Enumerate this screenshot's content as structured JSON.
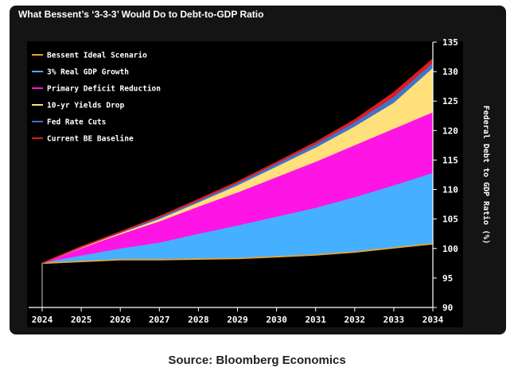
{
  "card": {
    "title": "What Bessent’s ‘3-3-3’ Would Do to Debt-to-GDP Ratio"
  },
  "source": {
    "text": "Source: Bloomberg Economics"
  },
  "chart_data": {
    "type": "area",
    "title": "What Bessent’s ‘3-3-3’ Would Do to Debt-to-GDP Ratio",
    "xlabel": "",
    "ylabel": "Federal Debt to GDP Ratio (%)",
    "x": [
      2024,
      2025,
      2026,
      2027,
      2028,
      2029,
      2030,
      2031,
      2032,
      2033,
      2034
    ],
    "ylim": [
      90,
      135
    ],
    "yticks": [
      90,
      95,
      100,
      105,
      110,
      115,
      120,
      125,
      130,
      135
    ],
    "legend_position": "top-left",
    "series": [
      {
        "name": "Bessent Ideal Scenario",
        "color": "#e8a33a",
        "values": [
          97.5,
          97.8,
          98.1,
          98.1,
          98.2,
          98.3,
          98.6,
          98.9,
          99.4,
          100.1,
          100.8
        ]
      },
      {
        "name": "3% Real GDP Growth",
        "color": "#45b0ff",
        "values": [
          97.5,
          98.7,
          99.9,
          100.9,
          102.4,
          103.8,
          105.3,
          106.8,
          108.6,
          110.6,
          112.7
        ]
      },
      {
        "name": "Primary Deficit Reduction",
        "color": "#ff14e6",
        "values": [
          97.5,
          100.0,
          102.3,
          104.5,
          107.0,
          109.4,
          112.0,
          114.6,
          117.4,
          120.2,
          123.0
        ]
      },
      {
        "name": "10-yr Yields Drop",
        "color": "#ffe07a",
        "values": [
          97.5,
          100.1,
          102.5,
          104.9,
          107.7,
          110.6,
          113.8,
          117.0,
          120.6,
          124.6,
          130.5
        ]
      },
      {
        "name": "Fed Rate Cuts",
        "color": "#3f74c8",
        "values": [
          97.5,
          100.2,
          102.7,
          105.2,
          108.0,
          111.0,
          114.3,
          117.6,
          121.3,
          125.6,
          131.4
        ]
      },
      {
        "name": "Current BE Baseline",
        "color": "#e01b1b",
        "values": [
          97.5,
          100.3,
          102.8,
          105.4,
          108.3,
          111.3,
          114.6,
          118.0,
          121.8,
          126.4,
          132.1
        ]
      }
    ]
  }
}
